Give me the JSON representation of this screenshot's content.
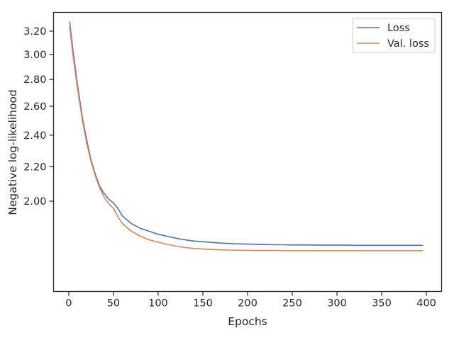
{
  "chart_data": {
    "type": "line",
    "xlabel": "Epochs",
    "ylabel": "Negative log-likelihood",
    "xlim": [
      -17,
      417
    ],
    "ylim": [
      1.558,
      3.37
    ],
    "yscale": "log",
    "xticks": [
      0,
      50,
      100,
      150,
      200,
      250,
      300,
      350,
      400
    ],
    "xtick_labels": [
      "0",
      "50",
      "100",
      "150",
      "200",
      "250",
      "300",
      "350",
      "400"
    ],
    "yticks": [
      2.0,
      2.2,
      2.4,
      2.6,
      2.8,
      3.0,
      3.2
    ],
    "ytick_labels": [
      "2.00",
      "2.20",
      "2.40",
      "2.60",
      "2.80",
      "3.00",
      "3.20"
    ],
    "grid": false,
    "legend_position": "top-right",
    "series": [
      {
        "name": "Loss",
        "color": "#4c72b0",
        "x": [
          1,
          5,
          10,
          15,
          20,
          25,
          30,
          35,
          40,
          45,
          50,
          55,
          60,
          70,
          80,
          90,
          100,
          110,
          120,
          130,
          140,
          150,
          160,
          170,
          180,
          190,
          200,
          210,
          220,
          230,
          240,
          250,
          260,
          270,
          280,
          290,
          300,
          310,
          320,
          330,
          340,
          350,
          360,
          370,
          380,
          390,
          396
        ],
        "y": [
          3.28,
          3.02,
          2.75,
          2.53,
          2.37,
          2.24,
          2.15,
          2.08,
          2.04,
          2.01,
          1.99,
          1.96,
          1.92,
          1.88,
          1.855,
          1.84,
          1.825,
          1.815,
          1.805,
          1.797,
          1.791,
          1.788,
          1.784,
          1.781,
          1.779,
          1.777,
          1.776,
          1.775,
          1.774,
          1.773,
          1.773,
          1.772,
          1.772,
          1.772,
          1.771,
          1.771,
          1.771,
          1.771,
          1.77,
          1.77,
          1.77,
          1.77,
          1.77,
          1.77,
          1.77,
          1.77,
          1.77
        ]
      },
      {
        "name": "Val. loss",
        "color": "#dd8452",
        "x": [
          1,
          5,
          10,
          15,
          20,
          25,
          30,
          35,
          40,
          45,
          50,
          55,
          60,
          70,
          80,
          90,
          100,
          110,
          120,
          130,
          140,
          150,
          160,
          170,
          180,
          190,
          200,
          210,
          220,
          230,
          240,
          250,
          260,
          270,
          280,
          290,
          300,
          310,
          320,
          330,
          340,
          350,
          360,
          370,
          380,
          390,
          396
        ],
        "y": [
          3.24,
          2.98,
          2.72,
          2.51,
          2.35,
          2.23,
          2.14,
          2.07,
          2.02,
          1.985,
          1.96,
          1.915,
          1.88,
          1.84,
          1.815,
          1.797,
          1.785,
          1.775,
          1.766,
          1.759,
          1.755,
          1.752,
          1.75,
          1.748,
          1.747,
          1.746,
          1.746,
          1.745,
          1.745,
          1.745,
          1.744,
          1.744,
          1.744,
          1.744,
          1.744,
          1.744,
          1.744,
          1.744,
          1.744,
          1.744,
          1.744,
          1.744,
          1.744,
          1.744,
          1.744,
          1.744,
          1.744
        ]
      }
    ]
  }
}
